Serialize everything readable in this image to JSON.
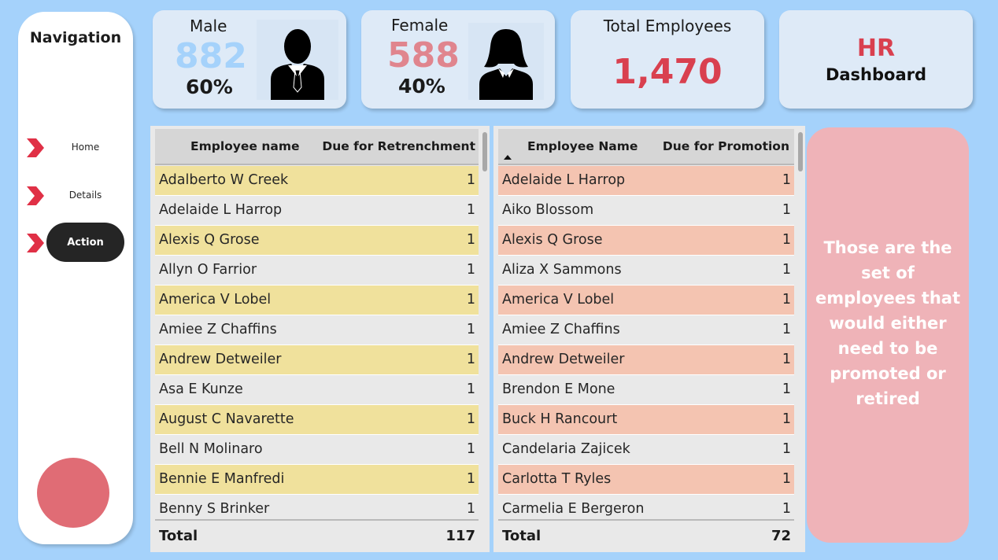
{
  "navigation": {
    "title": "Navigation",
    "items": [
      {
        "label": "Home"
      },
      {
        "label": "Details"
      },
      {
        "label": "Action"
      }
    ]
  },
  "kpi": {
    "male": {
      "label": "Male",
      "count": "882",
      "pct": "60%"
    },
    "female": {
      "label": "Female",
      "count": "588",
      "pct": "40%"
    },
    "total": {
      "label": "Total Employees",
      "count": "1,470"
    },
    "title": {
      "line1": "HR",
      "line2": "Dashboard"
    }
  },
  "retrenchment": {
    "col_name": "Employee name",
    "col_value": "Due for Retrenchment",
    "rows": [
      {
        "name": "Adalberto W Creek",
        "value": "1"
      },
      {
        "name": "Adelaide L Harrop",
        "value": "1"
      },
      {
        "name": "Alexis Q Grose",
        "value": "1"
      },
      {
        "name": "Allyn O Farrior",
        "value": "1"
      },
      {
        "name": "America V Lobel",
        "value": "1"
      },
      {
        "name": "Amiee Z Chaffins",
        "value": "1"
      },
      {
        "name": "Andrew Detweiler",
        "value": "1"
      },
      {
        "name": "Asa E Kunze",
        "value": "1"
      },
      {
        "name": "August C Navarette",
        "value": "1"
      },
      {
        "name": "Bell N Molinaro",
        "value": "1"
      },
      {
        "name": "Bennie E Manfredi",
        "value": "1"
      },
      {
        "name": "Benny S Brinker",
        "value": "1"
      }
    ],
    "total_label": "Total",
    "total_value": "117"
  },
  "promotion": {
    "col_name": "Employee Name",
    "col_value": "Due for Promotion",
    "rows": [
      {
        "name": "Adelaide L Harrop",
        "value": "1"
      },
      {
        "name": "Aiko Blossom",
        "value": "1"
      },
      {
        "name": "Alexis Q Grose",
        "value": "1"
      },
      {
        "name": "Aliza X Sammons",
        "value": "1"
      },
      {
        "name": "America V Lobel",
        "value": "1"
      },
      {
        "name": "Amiee Z Chaffins",
        "value": "1"
      },
      {
        "name": "Andrew Detweiler",
        "value": "1"
      },
      {
        "name": "Brendon E Mone",
        "value": "1"
      },
      {
        "name": "Buck H Rancourt",
        "value": "1"
      },
      {
        "name": "Candelaria Zajicek",
        "value": "1"
      },
      {
        "name": "Carlotta T Ryles",
        "value": "1"
      },
      {
        "name": "Carmelia E Bergeron",
        "value": "1"
      }
    ],
    "total_label": "Total",
    "total_value": "72"
  },
  "info": {
    "text": "Those are the set of employees that would either need to be promoted or retired"
  },
  "colors": {
    "background": "#a5d2fb",
    "male_accent": "#a5d2fb",
    "female_accent": "#e0858e",
    "total_accent": "#d9404f",
    "retrench_highlight": "#f0e19c",
    "promo_highlight": "#f4c4b1",
    "row_plain": "#e9e9e9"
  },
  "icons": {
    "male": "male-person-icon",
    "female": "female-person-icon",
    "nav_chevron": "chevron-right-icon"
  }
}
